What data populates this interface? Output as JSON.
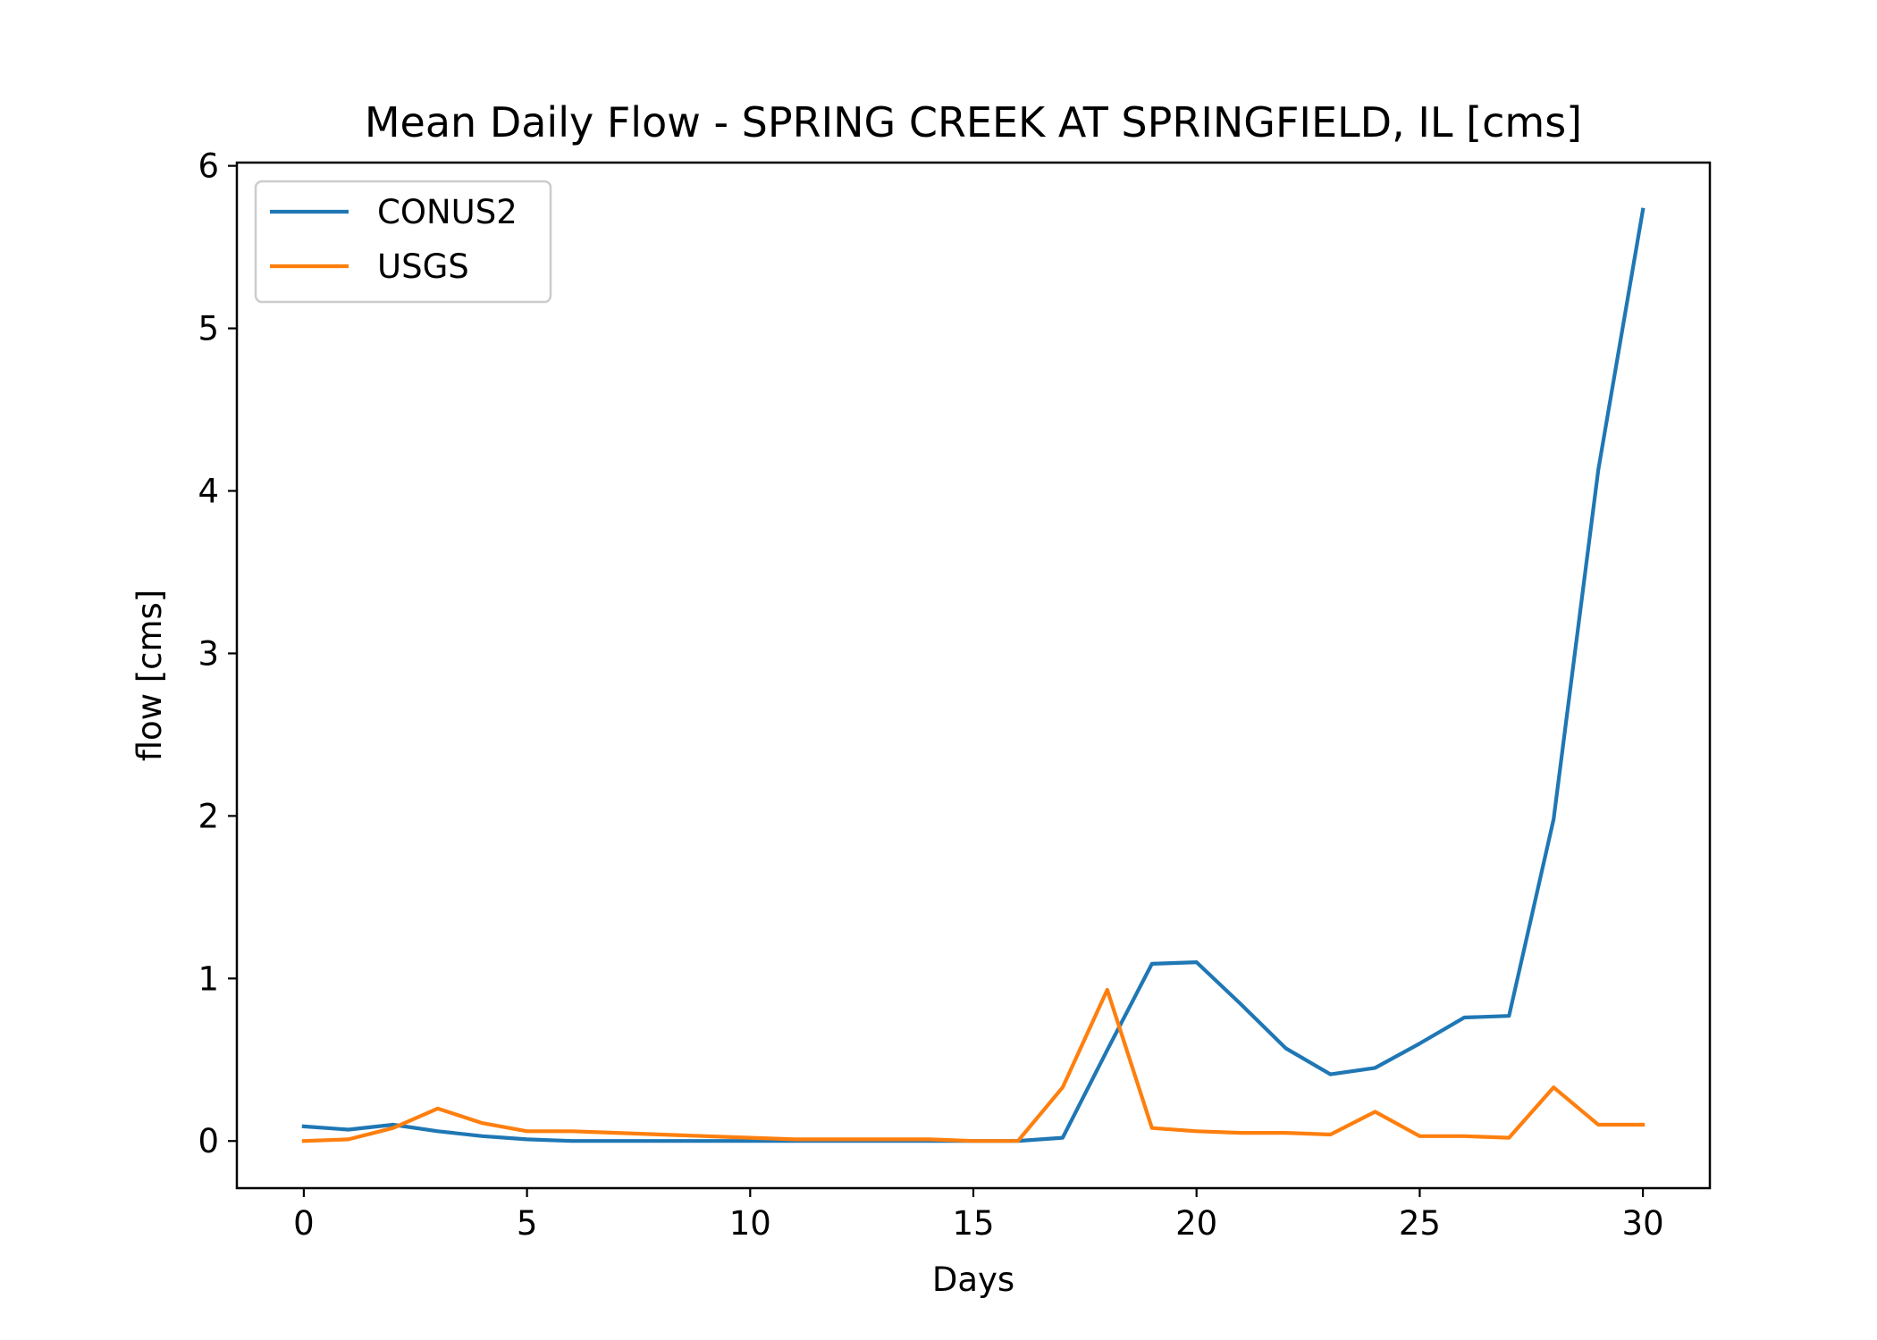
{
  "chart_data": {
    "type": "line",
    "title": "Mean Daily Flow - SPRING CREEK AT SPRINGFIELD, IL [cms]",
    "xlabel": "Days",
    "ylabel": "flow [cms]",
    "xlim": [
      -1.5,
      31.5
    ],
    "ylim": [
      -0.29,
      6.02
    ],
    "xticks": [
      0,
      5,
      10,
      15,
      20,
      25,
      30
    ],
    "yticks": [
      0,
      1,
      2,
      3,
      4,
      5,
      6
    ],
    "grid": false,
    "legend_position": "upper left",
    "x": [
      0,
      1,
      2,
      3,
      4,
      5,
      6,
      7,
      8,
      9,
      10,
      11,
      12,
      13,
      14,
      15,
      16,
      17,
      18,
      19,
      20,
      21,
      22,
      23,
      24,
      25,
      26,
      27,
      28,
      29,
      30
    ],
    "series": [
      {
        "name": "CONUS2",
        "color": "#1f77b4",
        "values": [
          0.09,
          0.07,
          0.1,
          0.06,
          0.03,
          0.01,
          0.0,
          0.0,
          0.0,
          0.0,
          0.0,
          0.0,
          0.0,
          0.0,
          0.0,
          0.0,
          0.0,
          0.02,
          0.56,
          1.09,
          1.1,
          0.84,
          0.57,
          0.41,
          0.45,
          0.6,
          0.76,
          0.77,
          1.98,
          4.13,
          5.73
        ]
      },
      {
        "name": "USGS",
        "color": "#ff7f0e",
        "values": [
          0.0,
          0.01,
          0.08,
          0.2,
          0.11,
          0.06,
          0.06,
          0.05,
          0.04,
          0.03,
          0.02,
          0.01,
          0.01,
          0.01,
          0.01,
          0.0,
          0.0,
          0.33,
          0.93,
          0.08,
          0.06,
          0.05,
          0.05,
          0.04,
          0.18,
          0.03,
          0.03,
          0.02,
          0.33,
          0.1,
          0.1
        ]
      }
    ]
  }
}
